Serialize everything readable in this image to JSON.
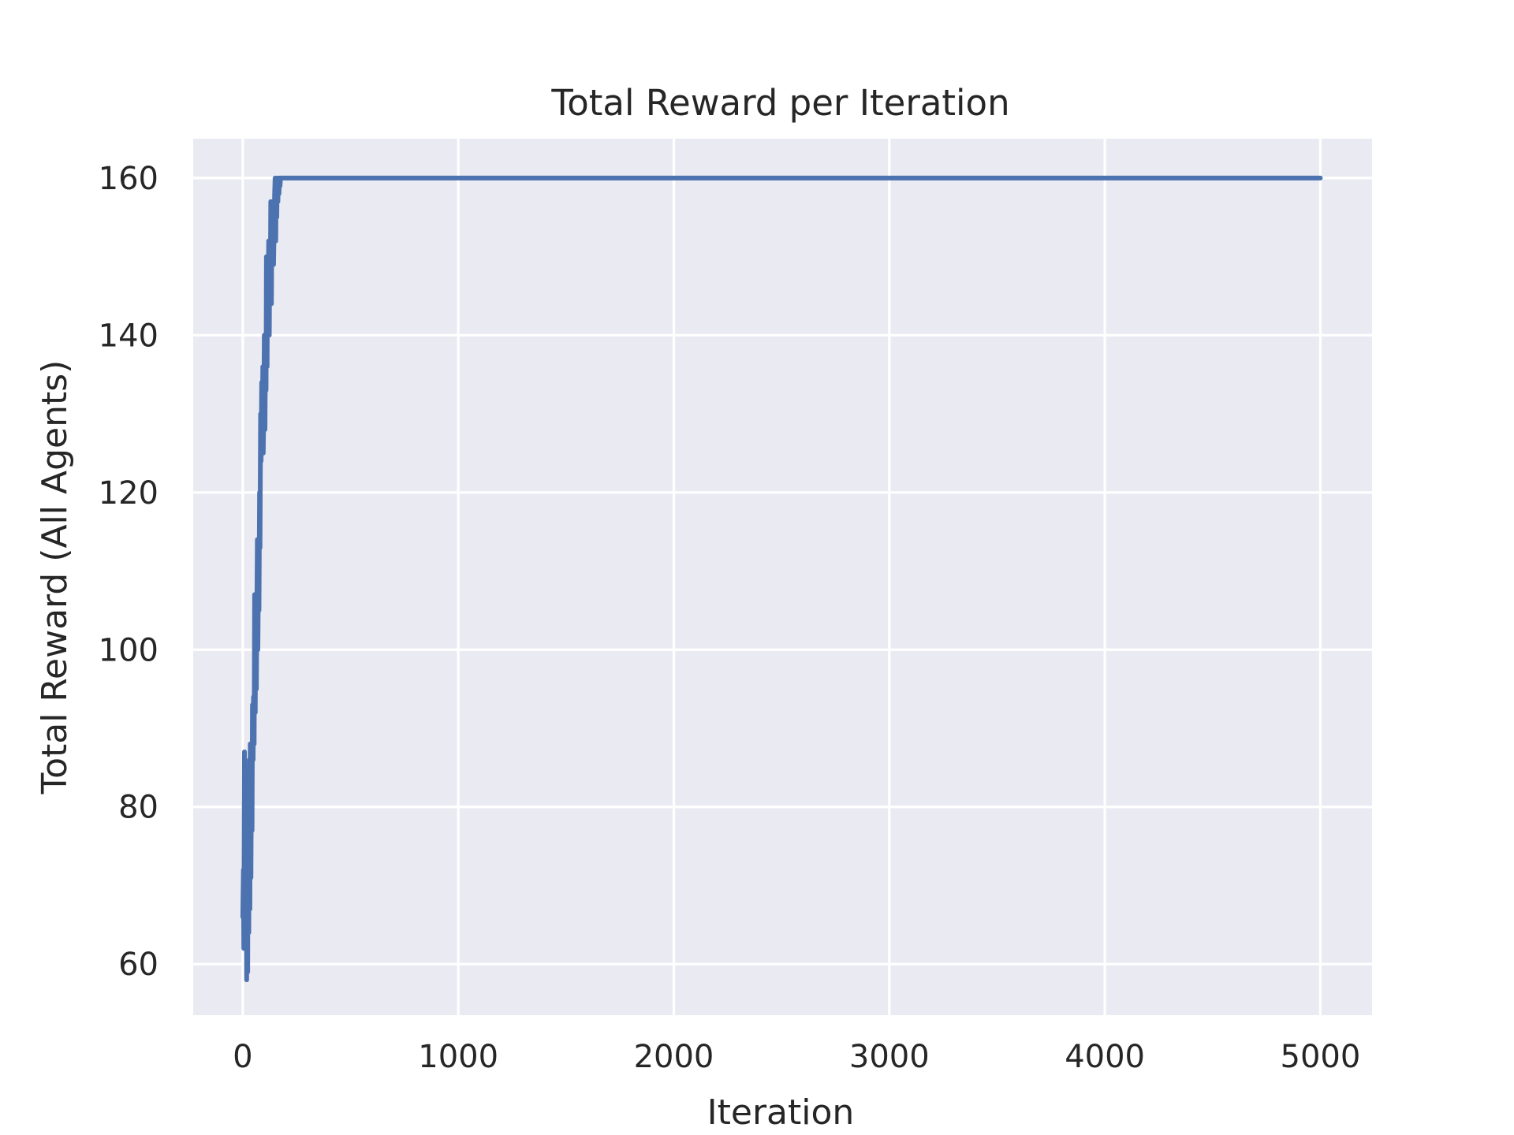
{
  "chart_data": {
    "type": "line",
    "title": "Total Reward per Iteration",
    "xlabel": "Iteration",
    "ylabel": "Total Reward (All Agents)",
    "xlim": [
      -230,
      5240
    ],
    "ylim": [
      53.5,
      165
    ],
    "xticks": [
      0,
      1000,
      2000,
      3000,
      4000,
      5000
    ],
    "yticks": [
      60,
      80,
      100,
      120,
      140,
      160
    ],
    "grid": true,
    "legend": "none",
    "colors": {
      "background": "#eaeaf2",
      "grid": "#ffffff",
      "series": "#4c72b0",
      "text": "#262626"
    },
    "series": [
      {
        "color": "#4c72b0",
        "x": [
          0,
          3,
          5,
          8,
          10,
          13,
          15,
          18,
          20,
          23,
          25,
          28,
          30,
          33,
          35,
          38,
          40,
          43,
          45,
          48,
          50,
          53,
          55,
          58,
          60,
          63,
          65,
          68,
          70,
          73,
          75,
          78,
          80,
          83,
          85,
          88,
          90,
          93,
          95,
          98,
          100,
          103,
          105,
          108,
          110,
          113,
          115,
          118,
          120,
          123,
          125,
          128,
          130,
          133,
          135,
          138,
          140,
          143,
          145,
          148,
          150,
          153,
          155,
          158,
          160,
          163,
          165,
          168,
          170,
          173,
          175,
          178,
          180,
          183,
          185,
          188,
          190,
          193,
          195,
          198,
          200,
          205,
          5000
        ],
        "y": [
          66,
          72,
          62,
          87,
          68,
          63,
          80,
          58,
          75,
          59,
          81,
          64,
          86,
          67,
          88,
          71,
          83,
          77,
          93,
          86,
          94,
          88,
          107,
          92,
          106,
          95,
          103,
          114,
          100,
          110,
          105,
          120,
          113,
          130,
          124,
          134,
          127,
          136,
          125,
          131,
          140,
          128,
          137,
          133,
          150,
          136,
          148,
          142,
          152,
          140,
          150,
          146,
          157,
          144,
          156,
          150,
          157,
          149,
          153,
          158,
          160,
          152,
          159,
          155,
          160,
          157,
          160,
          158,
          160,
          159,
          160,
          160,
          160,
          160,
          160,
          160,
          160,
          160,
          160,
          160,
          160,
          160,
          160
        ]
      }
    ]
  }
}
